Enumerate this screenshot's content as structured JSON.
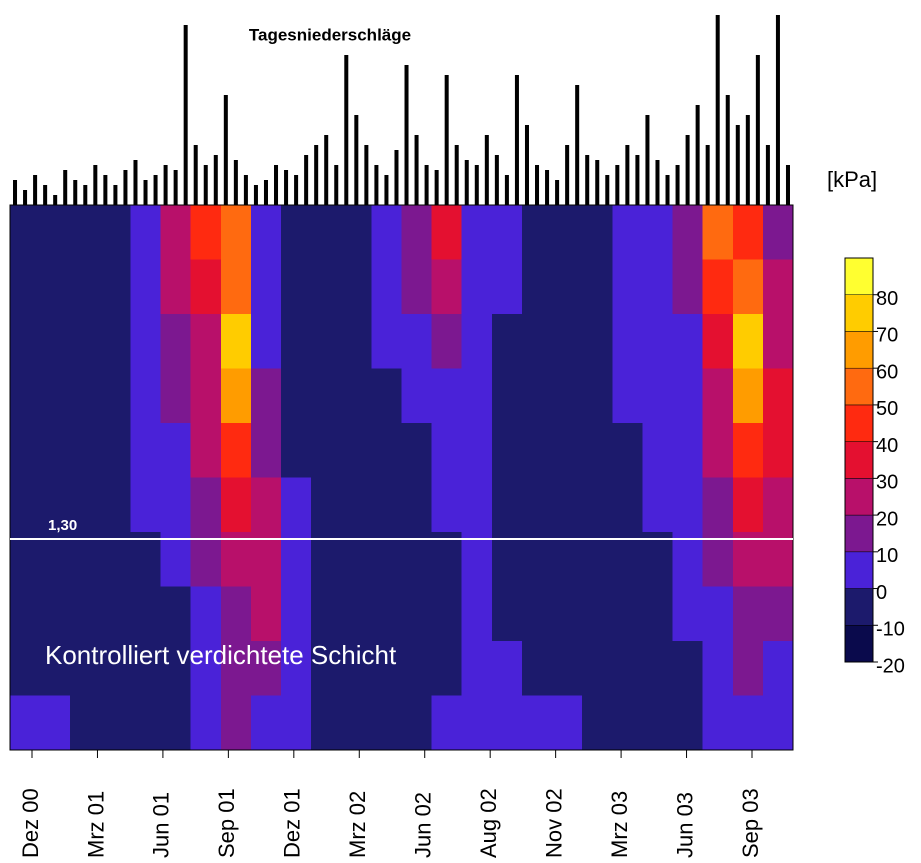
{
  "chart_data": {
    "type": "contour",
    "title": "Tagesniederschläge",
    "unit_label": "[kPa]",
    "categories": [
      "Dez 00",
      "Mrz 01",
      "Jun 01",
      "Sep 01",
      "Dez 01",
      "Mrz 02",
      "Jun 02",
      "Aug 02",
      "Nov 02",
      "Mrz 03",
      "Jun 03",
      "Sep 03"
    ],
    "levels": [
      -20,
      -10,
      0,
      10,
      20,
      30,
      40,
      50,
      60,
      70,
      80,
      90
    ],
    "level_colors": [
      "#0a0a4c",
      "#1c1a6c",
      "#4a22d8",
      "#7c1890",
      "#b8106a",
      "#e41030",
      "#ff2a10",
      "#ff6a10",
      "#ff9c00",
      "#ffcc00",
      "#ffff30"
    ],
    "colorbar_ticks": [
      -20,
      -10,
      0,
      10,
      20,
      30,
      40,
      50,
      60,
      70,
      80
    ],
    "z": [
      [
        -5,
        -5,
        -5,
        -5,
        5,
        25,
        45,
        55,
        5,
        -5,
        -5,
        -5,
        5,
        15,
        35,
        5,
        5,
        -5,
        -5,
        -5,
        5,
        5,
        15,
        55,
        45,
        15
      ],
      [
        -5,
        -5,
        -5,
        -5,
        5,
        25,
        35,
        55,
        5,
        -5,
        -5,
        -5,
        5,
        15,
        25,
        5,
        5,
        -5,
        -5,
        -5,
        5,
        5,
        15,
        45,
        55,
        25
      ],
      [
        -5,
        -5,
        -5,
        -5,
        5,
        15,
        25,
        75,
        5,
        -5,
        -5,
        -5,
        5,
        5,
        15,
        5,
        -5,
        -5,
        -5,
        -5,
        5,
        5,
        5,
        35,
        75,
        25
      ],
      [
        -5,
        -5,
        -5,
        -5,
        5,
        15,
        25,
        65,
        15,
        -5,
        -5,
        -5,
        -5,
        5,
        5,
        5,
        -5,
        -5,
        -5,
        -5,
        5,
        5,
        5,
        25,
        65,
        35
      ],
      [
        -5,
        -5,
        -5,
        -5,
        5,
        5,
        25,
        45,
        15,
        -5,
        -5,
        -5,
        -5,
        -5,
        5,
        5,
        -5,
        -5,
        -5,
        -5,
        -5,
        5,
        5,
        25,
        45,
        35
      ],
      [
        -5,
        -5,
        -5,
        -5,
        5,
        5,
        15,
        35,
        25,
        5,
        -5,
        -5,
        -5,
        -5,
        5,
        5,
        -5,
        -5,
        -5,
        -5,
        -5,
        5,
        5,
        15,
        35,
        25
      ],
      [
        -5,
        -5,
        -5,
        -5,
        -5,
        5,
        15,
        25,
        25,
        5,
        -5,
        -5,
        -5,
        -5,
        -5,
        5,
        -5,
        -5,
        -5,
        -5,
        -5,
        -5,
        5,
        15,
        25,
        25
      ],
      [
        -5,
        -5,
        -5,
        -5,
        -5,
        -5,
        5,
        15,
        25,
        5,
        -5,
        -5,
        -5,
        -5,
        -5,
        5,
        -5,
        -5,
        -5,
        -5,
        -5,
        -5,
        5,
        5,
        15,
        15
      ],
      [
        -5,
        -5,
        -5,
        -5,
        -5,
        -5,
        5,
        15,
        15,
        5,
        -5,
        -5,
        -5,
        -5,
        -5,
        5,
        5,
        -5,
        -5,
        -5,
        -5,
        -5,
        -5,
        5,
        15,
        5
      ],
      [
        5,
        5,
        -5,
        -5,
        -5,
        -5,
        5,
        15,
        5,
        5,
        -5,
        -5,
        -5,
        -5,
        5,
        5,
        5,
        5,
        5,
        -5,
        -5,
        -5,
        -5,
        5,
        5,
        5
      ]
    ],
    "precipitation": {
      "ylim": [
        0,
        190
      ],
      "values": [
        25,
        15,
        30,
        20,
        10,
        35,
        25,
        20,
        40,
        30,
        20,
        35,
        45,
        25,
        30,
        40,
        35,
        180,
        60,
        40,
        50,
        110,
        45,
        30,
        20,
        25,
        40,
        35,
        30,
        50,
        60,
        70,
        40,
        150,
        90,
        60,
        40,
        30,
        55,
        140,
        70,
        40,
        35,
        130,
        60,
        45,
        40,
        70,
        50,
        30,
        130,
        80,
        40,
        35,
        25,
        60,
        120,
        50,
        45,
        30,
        40,
        60,
        50,
        90,
        45,
        30,
        40,
        70,
        100,
        60,
        190,
        110,
        80,
        90,
        150,
        60,
        190,
        40
      ]
    },
    "annotations": [
      {
        "label": "1,30"
      },
      {
        "label": "Kontrolliert verdichtete Schicht"
      }
    ]
  }
}
